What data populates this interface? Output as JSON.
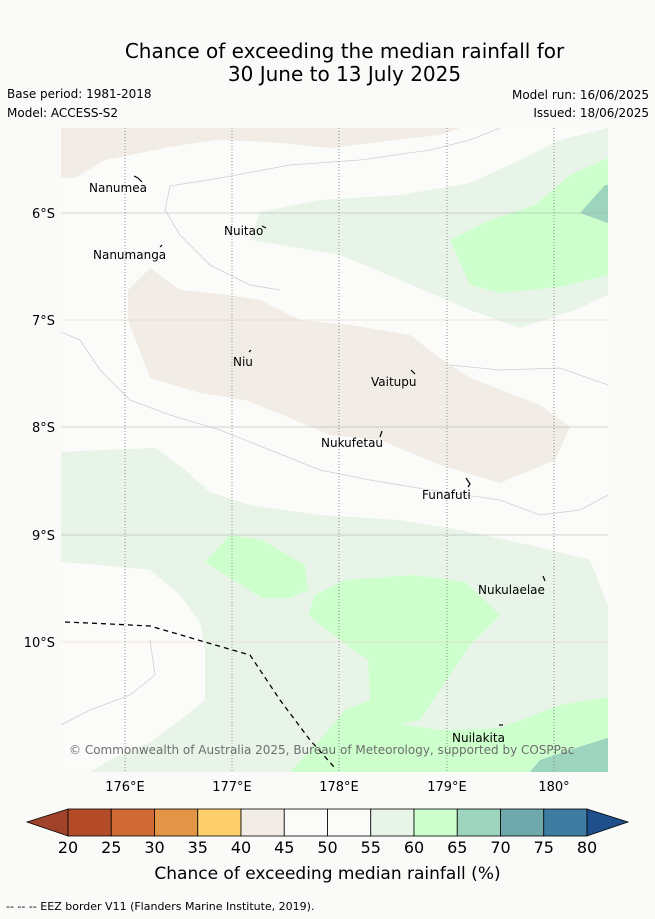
{
  "header": {
    "title_line1": "Chance of exceeding the median rainfall for",
    "title_line2": "30 June to 13 July 2025",
    "base_period": "Base period: 1981-2018",
    "model": "Model: ACCESS-S2",
    "model_run": "Model run: 16/06/2025",
    "issued": "Issued: 18/06/2025"
  },
  "map": {
    "lon_ticks": [
      "176°E",
      "177°E",
      "178°E",
      "179°E",
      "180°"
    ],
    "lat_ticks": [
      "6°S",
      "7°S",
      "8°S",
      "9°S",
      "10°S"
    ],
    "places": [
      "Nanumea",
      "Nuitao",
      "Nanumanga",
      "Niu",
      "Vaitupu",
      "Nukufetau",
      "Funafuti",
      "Nukulaelae",
      "Nuilakita"
    ],
    "copyright": "© Commonwealth of Australia 2025, Bureau of Meteorology, supported by COSPPac",
    "colors": {
      "20-25": "#b34a28",
      "25-30": "#cf6a35",
      "30-35": "#e29547",
      "35-40": "#fdcf6b",
      "40-45": "#f1ece6",
      "45-50": "#fbfcfa",
      "50-55": "#fbfcfa",
      "55-60": "#e9f4e8",
      "60-65": "#ccffcc",
      "65-70": "#9dd4be",
      "70-75": "#6fa9ac",
      "75-80": "#3e7ca1"
    }
  },
  "colorbar": {
    "ticks": [
      "20",
      "25",
      "30",
      "35",
      "40",
      "45",
      "50",
      "55",
      "60",
      "65",
      "70",
      "75",
      "80"
    ],
    "label": "Chance of exceeding median rainfall (%)"
  },
  "footnote": "-- -- -- EEZ border V11 (Flanders Marine Institute, 2019)."
}
